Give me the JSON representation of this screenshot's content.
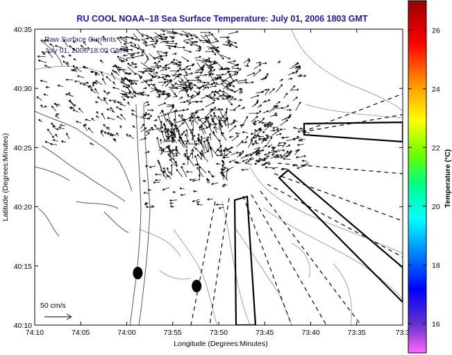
{
  "chart_data": {
    "type": "vector-field-map",
    "title": "RU COOL  NOAA–18  Sea Surface Temperature:  July 01, 2006 1803 GMT",
    "xlabel": "Longitude (Degrees:Minutes)",
    "ylabel": "Latitude (Degrees:Minutes)",
    "annotation_lines": [
      "Raw Surface Currents",
      "July 01, 2006 18:00 GMT"
    ],
    "scale_label": "50 cm/s",
    "x_ticks": [
      "74:10",
      "74:05",
      "74:00",
      "73:55",
      "73:50",
      "73:45",
      "73:40",
      "73:35",
      "73:3"
    ],
    "y_ticks": [
      "40:35",
      "40:30",
      "40:25",
      "40:20",
      "40:15",
      "40:10"
    ],
    "xlim_minutes": [
      4450,
      4410
    ],
    "ylim_minutes": [
      2410,
      2435
    ],
    "colorbar": {
      "label": "Temperature (°C)",
      "ticks": [
        "26",
        "24",
        "22",
        "20",
        "18",
        "16"
      ],
      "range": [
        15,
        27
      ]
    },
    "markers": [
      {
        "lon_min": 4438.8,
        "lat_min": 2414.4
      },
      {
        "lon_min": 4432.4,
        "lat_min": 2413.3
      }
    ],
    "grid": false
  }
}
